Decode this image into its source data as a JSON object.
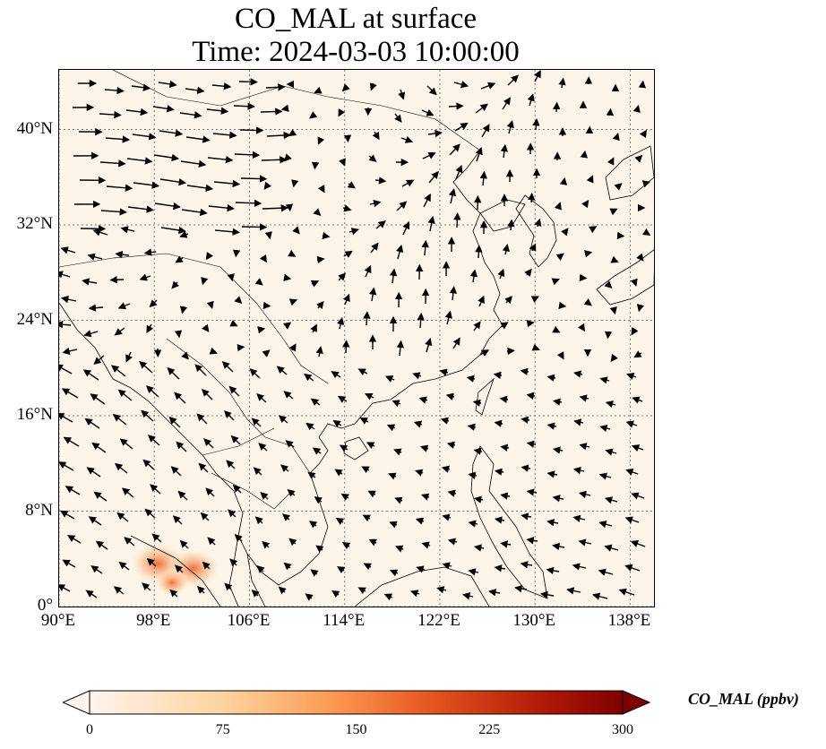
{
  "title": {
    "line1": "CO_MAL at surface",
    "line2": "Time: 2024-03-03 10:00:00"
  },
  "map": {
    "lon_range": [
      90,
      140
    ],
    "lat_range": [
      0,
      45
    ],
    "x_ticks": [
      "90°E",
      "98°E",
      "106°E",
      "114°E",
      "122°E",
      "130°E",
      "138°E"
    ],
    "x_tick_values": [
      90,
      98,
      106,
      114,
      122,
      130,
      138
    ],
    "y_ticks": [
      "0°",
      "8°N",
      "16°N",
      "24°N",
      "32°N",
      "40°N"
    ],
    "y_tick_values": [
      0,
      8,
      16,
      24,
      32,
      40
    ],
    "gridlines": "dotted",
    "hotspots": [
      {
        "lon": 98.3,
        "lat": 3.6,
        "intensity": 0.55
      },
      {
        "lon": 101.3,
        "lat": 3.2,
        "intensity": 0.5
      },
      {
        "lon": 99.5,
        "lat": 2.0,
        "intensity": 0.25
      }
    ]
  },
  "colorbar": {
    "label": "CO_MAL (ppbv)",
    "min": 0,
    "max": 300,
    "ticks": [
      "0",
      "75",
      "150",
      "225",
      "300"
    ],
    "tick_values": [
      0,
      75,
      150,
      225,
      300
    ],
    "colors": [
      "#fff5eb",
      "#fdd3a1",
      "#fd9b54",
      "#e4521d",
      "#b01a07",
      "#7f0000"
    ]
  }
}
